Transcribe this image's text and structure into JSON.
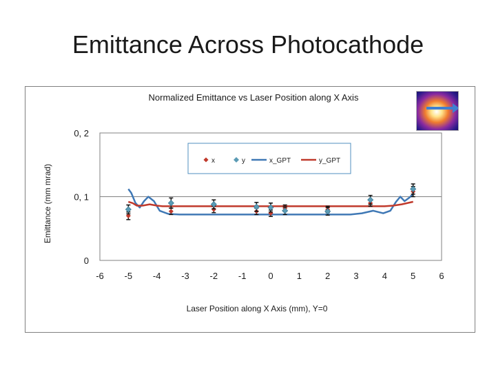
{
  "slide": {
    "title": "Emittance Across Photocathode"
  },
  "chart_data": {
    "type": "scatter",
    "title": "Normalized Emittance vs Laser Position along X Axis",
    "xlabel": "Laser Position along X Axis (mm), Y=0",
    "ylabel": "Emittance (mm mrad)",
    "xlim": [
      -6,
      6
    ],
    "ylim": [
      0,
      0.2
    ],
    "x_ticks": [
      "-6",
      "-5",
      "-4",
      "-3",
      "-2",
      "-1",
      "0",
      "1",
      "2",
      "3",
      "4",
      "5",
      "6"
    ],
    "y_ticks": [
      "0",
      "0, 1",
      "0, 2"
    ],
    "grid": "horizontal",
    "legend_position": "top-center",
    "series": [
      {
        "name": "x",
        "kind": "points",
        "color": "#c0392b",
        "x": [
          -5,
          -3.5,
          -2,
          -0.5,
          0,
          0.5,
          2,
          3.5,
          5
        ],
        "y": [
          0.07,
          0.077,
          0.08,
          0.077,
          0.074,
          0.082,
          0.08,
          0.09,
          0.108
        ],
        "err": [
          0.006,
          0.005,
          0.005,
          0.005,
          0.005,
          0.005,
          0.005,
          0.005,
          0.008
        ]
      },
      {
        "name": "y",
        "kind": "points",
        "color": "#5b9bb5",
        "x": [
          -5,
          -3.5,
          -2,
          -0.5,
          0,
          0.5,
          2,
          3.5,
          5
        ],
        "y": [
          0.08,
          0.09,
          0.088,
          0.084,
          0.083,
          0.078,
          0.077,
          0.095,
          0.112
        ],
        "err": [
          0.007,
          0.008,
          0.007,
          0.007,
          0.007,
          0.006,
          0.006,
          0.007,
          0.008
        ]
      },
      {
        "name": "x_GPT",
        "kind": "line",
        "color": "#3f78b5",
        "x": [
          -5,
          -4.9,
          -4.75,
          -4.6,
          -4.45,
          -4.3,
          -4.1,
          -3.9,
          -3.6,
          -3.2,
          -2,
          0,
          2,
          2.8,
          3.2,
          3.6,
          3.95,
          4.2,
          4.4,
          4.55,
          4.7,
          4.85,
          5
        ],
        "y": [
          0.112,
          0.106,
          0.09,
          0.083,
          0.093,
          0.1,
          0.093,
          0.078,
          0.073,
          0.072,
          0.072,
          0.072,
          0.072,
          0.072,
          0.074,
          0.078,
          0.074,
          0.078,
          0.092,
          0.1,
          0.093,
          0.098,
          0.104
        ]
      },
      {
        "name": "y_GPT",
        "kind": "line",
        "color": "#c0392b",
        "x": [
          -5,
          -4.85,
          -4.7,
          -4.5,
          -4.25,
          -4,
          -3.8,
          -3.5,
          -2,
          0,
          2,
          3,
          4,
          4.3,
          4.6,
          5
        ],
        "y": [
          0.092,
          0.09,
          0.086,
          0.086,
          0.088,
          0.086,
          0.085,
          0.085,
          0.085,
          0.085,
          0.085,
          0.085,
          0.085,
          0.086,
          0.088,
          0.092
        ]
      }
    ]
  }
}
